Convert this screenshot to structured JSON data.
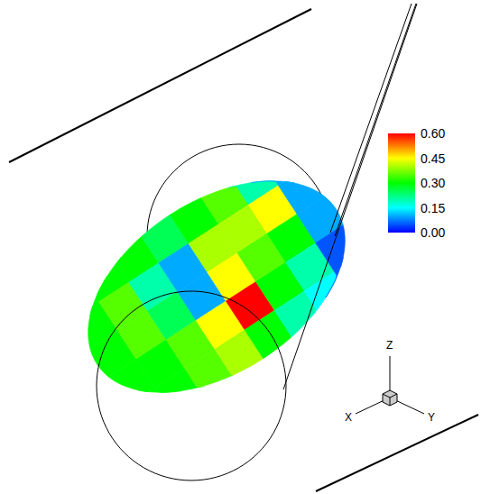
{
  "chart_data": {
    "type": "contour",
    "colorbar": {
      "range": [
        0,
        0.6
      ],
      "ticks": [
        {
          "value": 0,
          "label": "0.00"
        },
        {
          "value": 0.15,
          "label": "0.15"
        },
        {
          "value": 0.3,
          "label": "0.30"
        },
        {
          "value": 0.45,
          "label": "0.45"
        },
        {
          "value": 0.6,
          "label": "0.60"
        }
      ],
      "colors": [
        "#0000ff",
        "#00ffff",
        "#00ff00",
        "#ffff00",
        "#ff0000"
      ]
    },
    "field": {
      "values": [
        [
          0.3,
          0.3,
          0.3,
          0.25,
          0.3,
          0.35,
          0.2,
          0.1
        ],
        [
          0.3,
          0.35,
          0.2,
          0.1,
          0.4,
          0.4,
          0.45,
          0.1
        ],
        [
          0.3,
          0.35,
          0.25,
          0.1,
          0.45,
          0.35,
          0.3,
          0.1
        ],
        [
          0.3,
          0.3,
          0.35,
          0.45,
          0.6,
          0.3,
          0.2,
          0.05
        ],
        [
          0.3,
          0.3,
          0.35,
          0.4,
          0.3,
          0.2,
          0.15,
          0.05
        ]
      ]
    },
    "axis_labels": [
      "X",
      "Y",
      "Z"
    ]
  }
}
